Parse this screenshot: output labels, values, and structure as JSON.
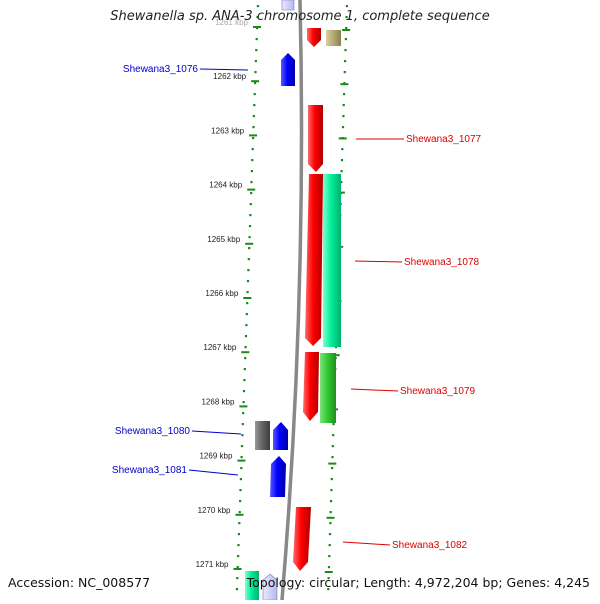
{
  "title": "Shewanella sp. ANA-3 chromosome 1, complete sequence",
  "accession_text": "Accession: NC_008577",
  "summary_text": "Topology: circular; Length: 4,972,204 bp; Genes: 4,245",
  "kbp_ticks": [
    {
      "label": "1261 kbp",
      "kbp": 1261
    },
    {
      "label": "1262 kbp",
      "kbp": 1262
    },
    {
      "label": "1263 kbp",
      "kbp": 1263
    },
    {
      "label": "1264 kbp",
      "kbp": 1264
    },
    {
      "label": "1265 kbp",
      "kbp": 1265
    },
    {
      "label": "1266 kbp",
      "kbp": 1266
    },
    {
      "label": "1267 kbp",
      "kbp": 1267
    },
    {
      "label": "1268 kbp",
      "kbp": 1268
    },
    {
      "label": "1269 kbp",
      "kbp": 1269
    },
    {
      "label": "1270 kbp",
      "kbp": 1270
    },
    {
      "label": "1271 kbp",
      "kbp": 1271
    }
  ],
  "gene_labels": [
    {
      "text": "Shewana3_1076",
      "strand": "reverse",
      "color": "#0000cc"
    },
    {
      "text": "Shewana3_1077",
      "strand": "forward",
      "color": "#dd0000"
    },
    {
      "text": "Shewana3_1078",
      "strand": "forward",
      "color": "#dd0000"
    },
    {
      "text": "Shewana3_1079",
      "strand": "forward",
      "color": "#dd0000"
    },
    {
      "text": "Shewana3_1080",
      "strand": "reverse",
      "color": "#0000cc"
    },
    {
      "text": "Shewana3_1081",
      "strand": "reverse",
      "color": "#0000cc"
    },
    {
      "text": "Shewana3_1082",
      "strand": "forward",
      "color": "#dd0000"
    }
  ],
  "feature_colors": {
    "forward_cds": "#ff0000",
    "reverse_cds": "#0000ff",
    "forward_frame": "#00ee99",
    "forward_frame_2": "#33cc33",
    "forward_other": "#b8ad78",
    "reverse_other": "#666666",
    "ruler_dots": "#1a8a1a",
    "backbone": "#888888"
  }
}
